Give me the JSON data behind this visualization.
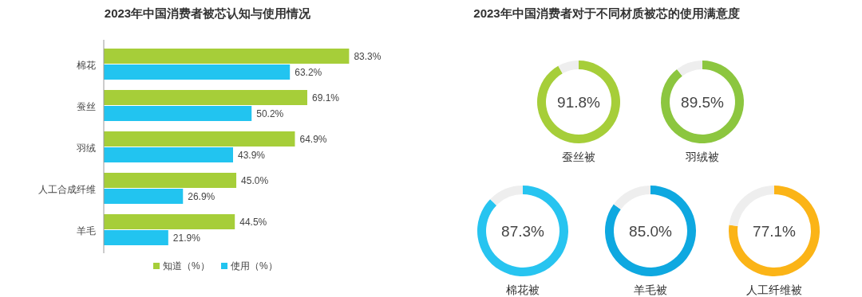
{
  "chart_data": [
    {
      "type": "bar",
      "orientation": "horizontal",
      "title": "2023年中国消费者被芯认知与使用情况",
      "categories": [
        "棉花",
        "蚕丝",
        "羽绒",
        "人工合成纤维",
        "羊毛"
      ],
      "series": [
        {
          "name": "知道（%）",
          "color": "#a6ce39",
          "values": [
            83.3,
            69.1,
            64.9,
            45.0,
            44.5
          ],
          "value_labels": [
            "83.3%",
            "69.1%",
            "64.9%",
            "45.0%",
            "44.5%"
          ]
        },
        {
          "name": "使用（%）",
          "color": "#22c4f0",
          "values": [
            63.2,
            50.2,
            43.9,
            26.9,
            21.9
          ],
          "value_labels": [
            "63.2%",
            "50.2%",
            "43.9%",
            "26.9%",
            "21.9%"
          ]
        }
      ],
      "legend": "bottom"
    },
    {
      "type": "donut",
      "title": "2023年中国消费者对于不同材质被芯的使用满意度",
      "categories": [
        "蚕丝被",
        null
      ],
      "values": [
        91.8,
        8.2
      ],
      "colors": [
        "#a6ce39",
        "#eeeeee"
      ],
      "value_labels": [
        "91.8%",
        null
      ]
    },
    {
      "type": "donut",
      "categories": [
        "羽绒被",
        null
      ],
      "values": [
        89.5,
        10.5
      ],
      "colors": [
        "#8cc63f",
        "#eeeeee"
      ],
      "value_labels": [
        "89.5%",
        null
      ]
    },
    {
      "type": "donut",
      "categories": [
        "棉花被",
        null
      ],
      "values": [
        87.3,
        12.7
      ],
      "colors": [
        "#27c4f0",
        "#eeeeee"
      ],
      "value_labels": [
        "87.3%",
        null
      ]
    },
    {
      "type": "donut",
      "categories": [
        "羊毛被",
        null
      ],
      "values": [
        85.0,
        15.0
      ],
      "colors": [
        "#0ea8e0",
        "#eeeeee"
      ],
      "value_labels": [
        "85.0%",
        null
      ]
    },
    {
      "type": "donut",
      "categories": [
        "人工纤维被",
        null
      ],
      "values": [
        77.1,
        22.9
      ],
      "colors": [
        "#fbb417",
        "#eeeeee"
      ],
      "value_labels": [
        "77.1%",
        null
      ]
    }
  ]
}
